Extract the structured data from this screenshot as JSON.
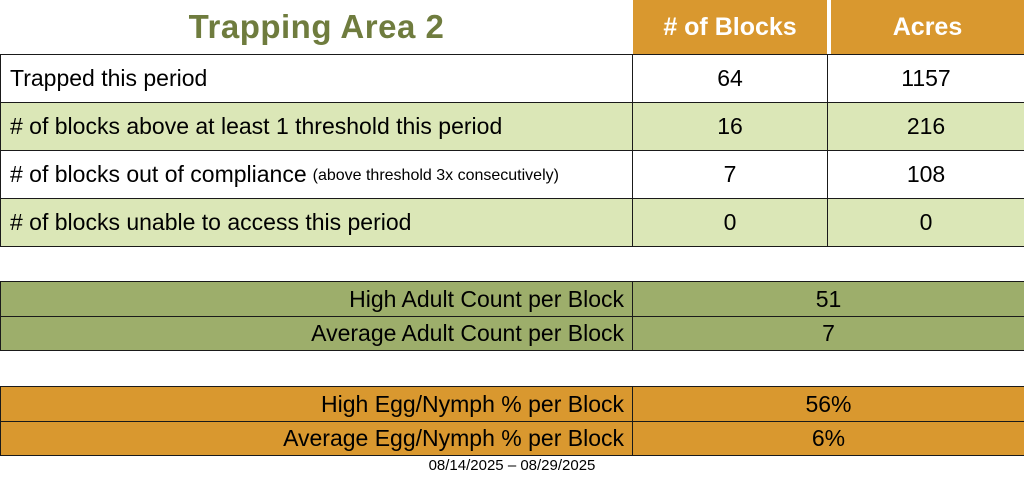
{
  "title": "Trapping Area 2",
  "colors": {
    "header_orange": "#D9982F",
    "stripe_light_green": "#DBE7B7",
    "adult_table_sage": "#9DAE6B",
    "title_olive_green": "#6F7C3E",
    "grid_border": "#1a1a1a"
  },
  "main_table": {
    "columns": [
      "# of Blocks",
      "Acres"
    ],
    "rows": [
      {
        "label": "Trapped this period",
        "note": "",
        "blocks": "64",
        "acres": "1157"
      },
      {
        "label": "# of blocks above at least 1 threshold this period",
        "note": "",
        "blocks": "16",
        "acres": "216"
      },
      {
        "label": "# of blocks out of compliance",
        "note": "(above threshold 3x consecutively)",
        "blocks": "7",
        "acres": "108"
      },
      {
        "label": "# of blocks unable to access this period",
        "note": "",
        "blocks": "0",
        "acres": "0"
      }
    ]
  },
  "adult_table": {
    "rows": [
      {
        "label": "High Adult Count per Block",
        "value": "51"
      },
      {
        "label": "Average Adult Count per Block",
        "value": "7"
      }
    ]
  },
  "egg_table": {
    "rows": [
      {
        "label": "High Egg/Nymph % per Block",
        "value": "56%"
      },
      {
        "label": "Average Egg/Nymph % per Block",
        "value": "6%"
      }
    ]
  },
  "footer": {
    "date_range": "08/14/2025 – 08/29/2025"
  }
}
